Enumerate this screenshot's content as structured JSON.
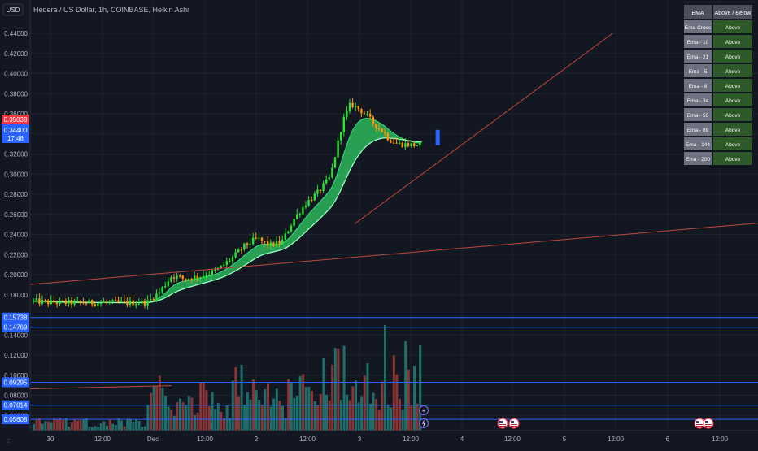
{
  "header": {
    "currency_button": "USD",
    "title": "Hedera / US Dollar, 1h, COINBASE, Heikin Ashi"
  },
  "price_axis": {
    "ticks": [
      "0.44000",
      "0.42000",
      "0.40000",
      "0.38000",
      "0.36000",
      "0.34000",
      "0.32000",
      "0.30000",
      "0.28000",
      "0.26000",
      "0.24000",
      "0.22000",
      "0.20000",
      "0.18000",
      "0.14000",
      "0.12000",
      "0.10000",
      "0.08000",
      "0.06000"
    ],
    "red_label": "0.35038",
    "blue_label": "0.34400",
    "countdown": "17:48",
    "level_labels": [
      "0.15738",
      "0.14769",
      "0.09295",
      "0.07014",
      "0.05608"
    ]
  },
  "time_axis": {
    "labels": [
      "30",
      "12:00",
      "Dec",
      "12:00",
      "2",
      "12:00",
      "3",
      "12:00",
      "4",
      "12:00",
      "5",
      "12:00",
      "6",
      "12:00"
    ]
  },
  "ema_table": {
    "header": [
      "EMA",
      "Above / Below"
    ],
    "rows": [
      {
        "name": "Ema Cross",
        "status": "Above"
      },
      {
        "name": "Ema - 10",
        "status": "Above"
      },
      {
        "name": "Ema - 21",
        "status": "Above"
      },
      {
        "name": "Ema - 5",
        "status": "Above"
      },
      {
        "name": "Ema - 8",
        "status": "Above"
      },
      {
        "name": "Ema - 34",
        "status": "Above"
      },
      {
        "name": "Ema - 55",
        "status": "Above"
      },
      {
        "name": "Ema - 89",
        "status": "Above"
      },
      {
        "name": "Ema - 144",
        "status": "Above"
      },
      {
        "name": "Ema - 200",
        "status": "Above"
      }
    ]
  },
  "colors": {
    "background": "#131722",
    "grid": "#1e222d",
    "bull": "#26e62f",
    "bear": "#ff9800",
    "vol_bull": "#1f6e6a",
    "vol_bear": "#8a3535",
    "trend": "#c0473f",
    "level": "#2962ff",
    "ribbon": "#2fcc61",
    "table_row": "#787b86",
    "table_cell": "#2e5a2a"
  },
  "chart_data": {
    "type": "candlestick",
    "price_scale": {
      "ylim": [
        0.043,
        0.453
      ]
    },
    "x_domain": [
      "2022-11-29T13:00",
      "2022-12-06T20:00"
    ],
    "last_candle": {
      "time": "2022-12-03T15:00",
      "open": 0.32865,
      "close": 0.344
    },
    "current_price": 0.344,
    "countdown_label": "17:48",
    "trendlines": [
      {
        "name": "short-term",
        "from": {
          "time": "2022-12-02T19:00",
          "price": 0.2504
        },
        "to": {
          "time": "2022-12-05T09:00",
          "price": 0.4399
        }
      },
      {
        "name": "long-term",
        "from": {
          "time": "2022-11-29T13:00",
          "price": 0.1902
        },
        "to": {
          "time": "2022-12-06T20:00",
          "price": 0.2512
        }
      },
      {
        "name": "volume-trend",
        "from": {
          "time": "2022-11-29T13:00",
          "price": 0.0865
        },
        "to": {
          "time": "2022-11-30T23:00",
          "price": 0.0896
        }
      }
    ],
    "horizontal_levels": [
      0.15738,
      0.14769,
      0.09295,
      0.07014,
      0.05608
    ],
    "ema_ribbon": {
      "fast_above_slow": true
    },
    "volume_overlay": {
      "scale": "separate",
      "max_relative": 1.0
    }
  }
}
